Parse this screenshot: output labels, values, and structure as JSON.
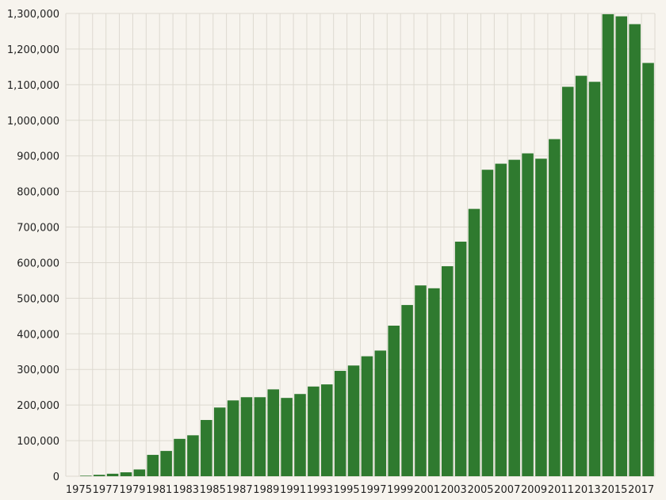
{
  "chart_data": {
    "type": "bar",
    "title": "",
    "xlabel": "",
    "ylabel": "",
    "grid": true,
    "ylim": [
      0,
      1300000
    ],
    "yticks": [
      0,
      100000,
      200000,
      300000,
      400000,
      500000,
      600000,
      700000,
      800000,
      900000,
      1000000,
      1100000,
      1200000,
      1300000
    ],
    "ytick_labels": [
      "0",
      "100,000",
      "200,000",
      "300,000",
      "400,000",
      "500,000",
      "600,000",
      "700,000",
      "800,000",
      "900,000",
      "1,000,000",
      "1,100,000",
      "1,200,000",
      "1,300,000"
    ],
    "categories": [
      "1975",
      "1976",
      "1977",
      "1978",
      "1979",
      "1980",
      "1981",
      "1982",
      "1983",
      "1984",
      "1985",
      "1986",
      "1987",
      "1988",
      "1989",
      "1990",
      "1991",
      "1992",
      "1993",
      "1994",
      "1995",
      "1996",
      "1997",
      "1998",
      "1999",
      "2000",
      "2001",
      "2002",
      "2003",
      "2004",
      "2005",
      "2006",
      "2007",
      "2008",
      "2009",
      "2010",
      "2011",
      "2012",
      "2013",
      "2014",
      "2015",
      "2016",
      "2017",
      "2018"
    ],
    "xtick_labels": [
      "1975",
      "1977",
      "1979",
      "1981",
      "1983",
      "1985",
      "1987",
      "1989",
      "1991",
      "1993",
      "1995",
      "1997",
      "1999",
      "2001",
      "2003",
      "2005",
      "2007",
      "2009",
      "2011",
      "2013",
      "2015",
      "2017"
    ],
    "values": [
      0,
      1500,
      4000,
      7000,
      11000,
      19000,
      60000,
      71000,
      105000,
      115000,
      158000,
      193000,
      213000,
      222000,
      222000,
      244000,
      220000,
      231000,
      252000,
      258000,
      296000,
      311000,
      337000,
      353000,
      423000,
      481000,
      536000,
      528000,
      590000,
      659000,
      751000,
      861000,
      878000,
      889000,
      907000,
      892000,
      947000,
      1094000,
      1125000,
      1108000,
      1298000,
      1292000,
      1270000,
      1161000
    ],
    "bar_color": "#2f7a2f"
  }
}
